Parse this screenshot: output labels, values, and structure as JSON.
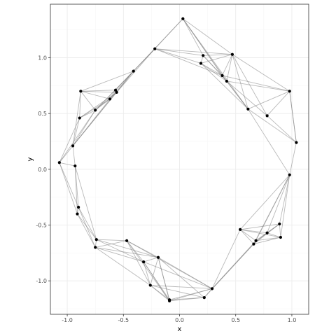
{
  "chart_data": {
    "type": "scatter",
    "title": "",
    "xlabel": "x",
    "ylabel": "y",
    "xlim": [
      -1.15,
      1.15
    ],
    "ylim": [
      -1.3,
      1.48
    ],
    "x_ticks": [
      -1.0,
      -0.5,
      0.0,
      0.5,
      1.0
    ],
    "x_tick_labels": [
      "-1.0",
      "-0.5",
      "0.0",
      "0.5",
      "1.0"
    ],
    "y_ticks": [
      -1.0,
      -0.5,
      0.0,
      0.5,
      1.0
    ],
    "y_tick_labels": [
      "-1.0",
      "-0.5",
      "0.0",
      "0.5",
      "1.0"
    ],
    "grid": true,
    "colors": {
      "panel_border": "#333333",
      "grid_major": "#ebebeb",
      "grid_minor": "#f5f5f5",
      "edge": "#7f7f7f",
      "point": "#000000"
    },
    "points": [
      {
        "x": 0.03,
        "y": 1.35
      },
      {
        "x": -0.22,
        "y": 1.08
      },
      {
        "x": 0.21,
        "y": 1.02
      },
      {
        "x": 0.47,
        "y": 1.03
      },
      {
        "x": 0.19,
        "y": 0.95
      },
      {
        "x": -0.41,
        "y": 0.88
      },
      {
        "x": 0.38,
        "y": 0.84
      },
      {
        "x": 0.42,
        "y": 0.79
      },
      {
        "x": 0.98,
        "y": 0.7
      },
      {
        "x": -0.88,
        "y": 0.7
      },
      {
        "x": -0.57,
        "y": 0.71
      },
      {
        "x": -0.56,
        "y": 0.69
      },
      {
        "x": -0.62,
        "y": 0.63
      },
      {
        "x": 0.61,
        "y": 0.54
      },
      {
        "x": -0.75,
        "y": 0.53
      },
      {
        "x": 0.78,
        "y": 0.48
      },
      {
        "x": -0.89,
        "y": 0.46
      },
      {
        "x": 1.04,
        "y": 0.24
      },
      {
        "x": -0.95,
        "y": 0.21
      },
      {
        "x": -1.07,
        "y": 0.06
      },
      {
        "x": -0.93,
        "y": 0.03
      },
      {
        "x": 0.98,
        "y": -0.05
      },
      {
        "x": -0.9,
        "y": -0.34
      },
      {
        "x": -0.91,
        "y": -0.4
      },
      {
        "x": 0.54,
        "y": -0.54
      },
      {
        "x": 0.89,
        "y": -0.49
      },
      {
        "x": 0.78,
        "y": -0.57
      },
      {
        "x": 0.9,
        "y": -0.61
      },
      {
        "x": 0.68,
        "y": -0.64
      },
      {
        "x": 0.66,
        "y": -0.67
      },
      {
        "x": -0.74,
        "y": -0.63
      },
      {
        "x": -0.47,
        "y": -0.64
      },
      {
        "x": -0.75,
        "y": -0.7
      },
      {
        "x": -0.19,
        "y": -0.79
      },
      {
        "x": -0.32,
        "y": -0.83
      },
      {
        "x": -0.26,
        "y": -1.04
      },
      {
        "x": 0.29,
        "y": -1.07
      },
      {
        "x": 0.22,
        "y": -1.15
      },
      {
        "x": -0.09,
        "y": -1.17
      },
      {
        "x": -0.09,
        "y": -1.18
      }
    ],
    "edges": [
      [
        0,
        1
      ],
      [
        0,
        5
      ],
      [
        0,
        3
      ],
      [
        0,
        6
      ],
      [
        0,
        7
      ],
      [
        0,
        13
      ],
      [
        0,
        2
      ],
      [
        1,
        2
      ],
      [
        1,
        3
      ],
      [
        1,
        4
      ],
      [
        1,
        5
      ],
      [
        1,
        6
      ],
      [
        1,
        10
      ],
      [
        1,
        11
      ],
      [
        2,
        3
      ],
      [
        2,
        4
      ],
      [
        2,
        6
      ],
      [
        2,
        7
      ],
      [
        3,
        4
      ],
      [
        3,
        6
      ],
      [
        3,
        7
      ],
      [
        3,
        8
      ],
      [
        3,
        13
      ],
      [
        3,
        15
      ],
      [
        4,
        6
      ],
      [
        4,
        7
      ],
      [
        4,
        13
      ],
      [
        5,
        9
      ],
      [
        5,
        10
      ],
      [
        5,
        11
      ],
      [
        5,
        12
      ],
      [
        5,
        14
      ],
      [
        5,
        18
      ],
      [
        6,
        7
      ],
      [
        6,
        13
      ],
      [
        7,
        13
      ],
      [
        7,
        8
      ],
      [
        7,
        15
      ],
      [
        8,
        13
      ],
      [
        8,
        15
      ],
      [
        8,
        17
      ],
      [
        6,
        8
      ],
      [
        9,
        10
      ],
      [
        9,
        11
      ],
      [
        9,
        12
      ],
      [
        9,
        14
      ],
      [
        9,
        16
      ],
      [
        9,
        18
      ],
      [
        10,
        11
      ],
      [
        10,
        12
      ],
      [
        10,
        14
      ],
      [
        11,
        12
      ],
      [
        11,
        14
      ],
      [
        11,
        16
      ],
      [
        11,
        18
      ],
      [
        12,
        14
      ],
      [
        12,
        16
      ],
      [
        12,
        18
      ],
      [
        14,
        16
      ],
      [
        14,
        18
      ],
      [
        16,
        18
      ],
      [
        16,
        19
      ],
      [
        14,
        19
      ],
      [
        18,
        19
      ],
      [
        18,
        20
      ],
      [
        19,
        20
      ],
      [
        19,
        22
      ],
      [
        20,
        22
      ],
      [
        20,
        23
      ],
      [
        19,
        23
      ],
      [
        22,
        23
      ],
      [
        20,
        30
      ],
      [
        22,
        30
      ],
      [
        22,
        32
      ],
      [
        23,
        30
      ],
      [
        23,
        32
      ],
      [
        30,
        31
      ],
      [
        30,
        32
      ],
      [
        31,
        32
      ],
      [
        30,
        33
      ],
      [
        31,
        33
      ],
      [
        32,
        33
      ],
      [
        31,
        34
      ],
      [
        32,
        34
      ],
      [
        30,
        34
      ],
      [
        33,
        34
      ],
      [
        33,
        35
      ],
      [
        34,
        35
      ],
      [
        31,
        35
      ],
      [
        32,
        35
      ],
      [
        35,
        38
      ],
      [
        35,
        39
      ],
      [
        33,
        38
      ],
      [
        34,
        38
      ],
      [
        33,
        39
      ],
      [
        35,
        36
      ],
      [
        33,
        36
      ],
      [
        34,
        36
      ],
      [
        31,
        36
      ],
      [
        35,
        37
      ],
      [
        33,
        37
      ],
      [
        36,
        37
      ],
      [
        36,
        38
      ],
      [
        36,
        39
      ],
      [
        37,
        38
      ],
      [
        37,
        39
      ],
      [
        38,
        39
      ],
      [
        31,
        39
      ],
      [
        34,
        39
      ],
      [
        36,
        24
      ],
      [
        36,
        29
      ],
      [
        36,
        28
      ],
      [
        37,
        29
      ],
      [
        17,
        21
      ],
      [
        8,
        17
      ],
      [
        15,
        17
      ],
      [
        13,
        17
      ],
      [
        13,
        21
      ],
      [
        21,
        24
      ],
      [
        21,
        25
      ],
      [
        21,
        26
      ],
      [
        21,
        27
      ],
      [
        21,
        28
      ],
      [
        21,
        29
      ],
      [
        24,
        25
      ],
      [
        24,
        26
      ],
      [
        24,
        27
      ],
      [
        24,
        28
      ],
      [
        24,
        29
      ],
      [
        25,
        26
      ],
      [
        25,
        27
      ],
      [
        25,
        28
      ],
      [
        25,
        29
      ],
      [
        26,
        27
      ],
      [
        26,
        28
      ],
      [
        26,
        29
      ],
      [
        27,
        28
      ],
      [
        27,
        29
      ],
      [
        28,
        29
      ]
    ]
  }
}
